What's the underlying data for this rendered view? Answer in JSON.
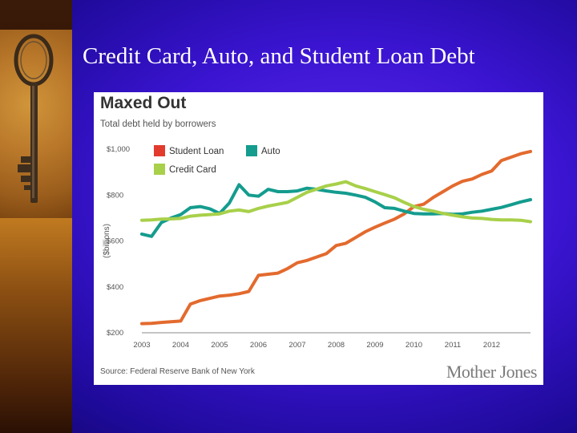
{
  "slide": {
    "title": "Credit Card, Auto, and Student Loan Debt"
  },
  "brand": "Mother Jones",
  "colors": {
    "student": "#e36a2e",
    "auto": "#149c8e",
    "credit": "#a8d04a",
    "legend_student": "#e23b2e"
  },
  "icons": {
    "left_image": "key-icon"
  },
  "chart_data": {
    "type": "line",
    "title": "Maxed Out",
    "subtitle": "Total debt held by borrowers",
    "ylabel": "($billions)",
    "source": "Source: Federal Reserve Bank of New York",
    "ylim": [
      200,
      1000
    ],
    "xlim": [
      2003.0,
      2013.0
    ],
    "y_ticks": [
      200,
      400,
      600,
      800,
      1000
    ],
    "y_tick_labels": [
      "$200",
      "$400",
      "$600",
      "$800",
      "$1,000"
    ],
    "x_ticks": [
      2003,
      2004,
      2005,
      2006,
      2007,
      2008,
      2009,
      2010,
      2011,
      2012
    ],
    "grid": false,
    "legend": "top-left",
    "series": [
      {
        "name": "Student Loan",
        "key": "student",
        "x": [
          2003.0,
          2003.25,
          2003.5,
          2003.75,
          2004.0,
          2004.25,
          2004.5,
          2004.75,
          2005.0,
          2005.25,
          2005.5,
          2005.75,
          2006.0,
          2006.25,
          2006.5,
          2006.75,
          2007.0,
          2007.25,
          2007.5,
          2007.75,
          2008.0,
          2008.25,
          2008.5,
          2008.75,
          2009.0,
          2009.25,
          2009.5,
          2009.75,
          2010.0,
          2010.25,
          2010.5,
          2010.75,
          2011.0,
          2011.25,
          2011.5,
          2011.75,
          2012.0,
          2012.25,
          2012.5,
          2012.75,
          2013.0
        ],
        "values": [
          240,
          241,
          245,
          248,
          251,
          325,
          340,
          350,
          360,
          364,
          370,
          380,
          450,
          455,
          460,
          480,
          505,
          515,
          530,
          545,
          580,
          590,
          615,
          640,
          660,
          678,
          695,
          718,
          750,
          760,
          790,
          815,
          840,
          860,
          870,
          890,
          905,
          950,
          965,
          980,
          990
        ]
      },
      {
        "name": "Auto",
        "key": "auto",
        "x": [
          2003.0,
          2003.25,
          2003.5,
          2003.75,
          2004.0,
          2004.25,
          2004.5,
          2004.75,
          2005.0,
          2005.25,
          2005.5,
          2005.75,
          2006.0,
          2006.25,
          2006.5,
          2006.75,
          2007.0,
          2007.25,
          2007.5,
          2007.75,
          2008.0,
          2008.25,
          2008.5,
          2008.75,
          2009.0,
          2009.25,
          2009.5,
          2009.75,
          2010.0,
          2010.25,
          2010.5,
          2010.75,
          2011.0,
          2011.25,
          2011.5,
          2011.75,
          2012.0,
          2012.25,
          2012.5,
          2012.75,
          2013.0
        ],
        "values": [
          630,
          620,
          680,
          700,
          715,
          745,
          750,
          740,
          720,
          765,
          845,
          800,
          795,
          825,
          815,
          815,
          818,
          830,
          825,
          818,
          812,
          808,
          800,
          790,
          770,
          745,
          742,
          730,
          720,
          718,
          718,
          720,
          716,
          718,
          725,
          730,
          738,
          746,
          758,
          770,
          780
        ]
      },
      {
        "name": "Credit Card",
        "key": "credit",
        "x": [
          2003.0,
          2003.25,
          2003.5,
          2003.75,
          2004.0,
          2004.25,
          2004.5,
          2004.75,
          2005.0,
          2005.25,
          2005.5,
          2005.75,
          2006.0,
          2006.25,
          2006.5,
          2006.75,
          2007.0,
          2007.25,
          2007.5,
          2007.75,
          2008.0,
          2008.25,
          2008.5,
          2008.75,
          2009.0,
          2009.25,
          2009.5,
          2009.75,
          2010.0,
          2010.25,
          2010.5,
          2010.75,
          2011.0,
          2011.25,
          2011.5,
          2011.75,
          2012.0,
          2012.25,
          2012.5,
          2012.75,
          2013.0
        ],
        "values": [
          690,
          692,
          695,
          696,
          698,
          708,
          712,
          715,
          718,
          730,
          735,
          728,
          742,
          752,
          760,
          768,
          790,
          812,
          826,
          840,
          848,
          858,
          840,
          828,
          815,
          802,
          788,
          768,
          750,
          738,
          730,
          720,
          712,
          705,
          700,
          698,
          694,
          692,
          692,
          690,
          684
        ]
      }
    ]
  }
}
